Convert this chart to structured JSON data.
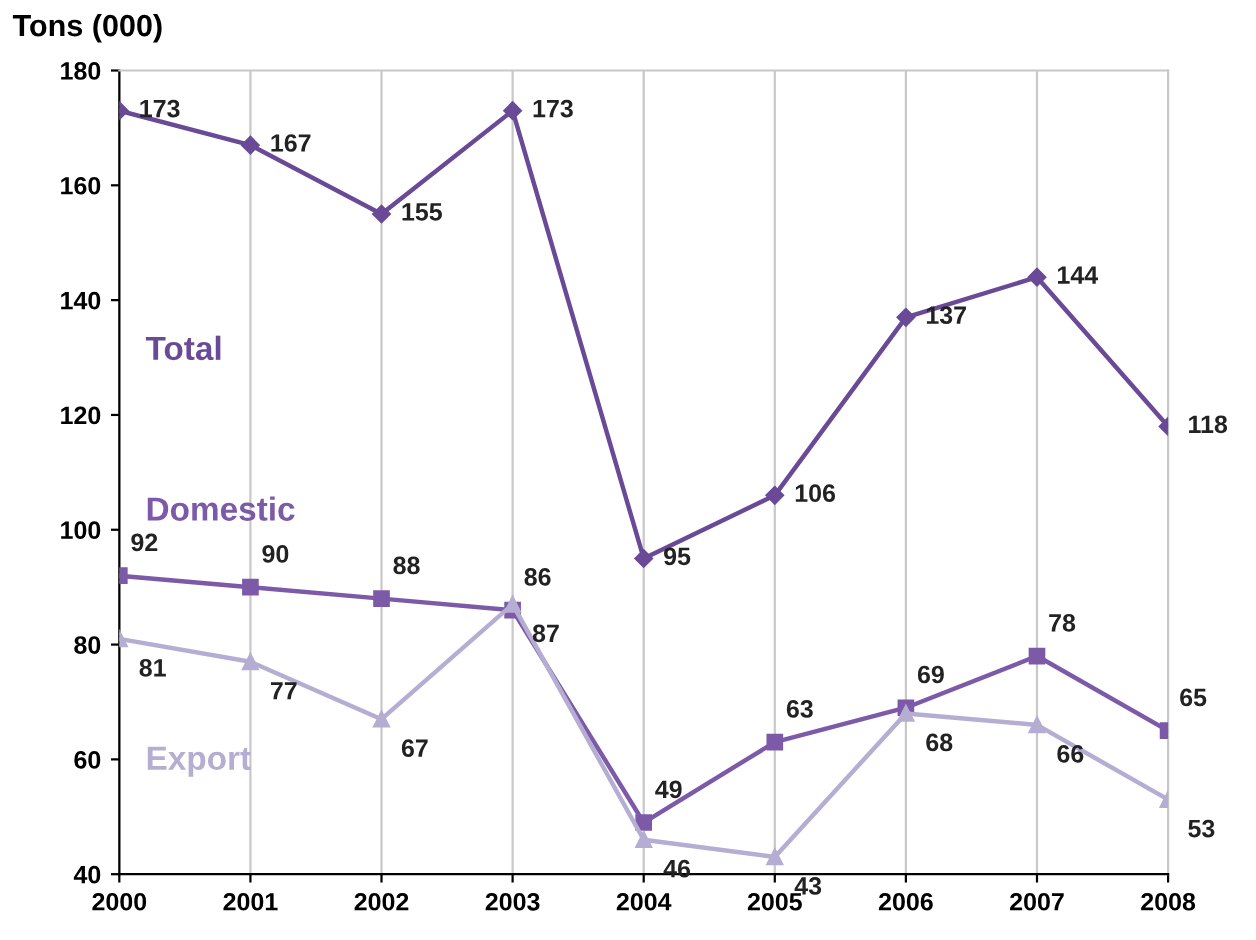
{
  "chart_data": {
    "type": "line",
    "ylabel": "Tons (000)",
    "x": [
      2000,
      2001,
      2002,
      2003,
      2004,
      2005,
      2006,
      2007,
      2008
    ],
    "xlim": [
      2000,
      2008
    ],
    "xticks": [
      2000,
      2001,
      2002,
      2003,
      2004,
      2005,
      2006,
      2007,
      2008
    ],
    "ylim": [
      40,
      180
    ],
    "yticks": [
      40,
      60,
      80,
      100,
      120,
      140,
      160,
      180
    ],
    "grid": "x",
    "data_labels": true,
    "legend": false,
    "series": [
      {
        "name": "Total",
        "color": "#6a4a96",
        "marker": "diamond",
        "values": [
          173,
          167,
          155,
          173,
          95,
          106,
          137,
          144,
          118
        ]
      },
      {
        "name": "Domestic",
        "color": "#7c5aa8",
        "marker": "square",
        "values": [
          92,
          90,
          88,
          86,
          49,
          63,
          69,
          78,
          65
        ]
      },
      {
        "name": "Export",
        "color": "#b5add2",
        "marker": "triangle",
        "values": [
          81,
          77,
          67,
          87,
          46,
          43,
          68,
          66,
          53
        ]
      }
    ]
  }
}
